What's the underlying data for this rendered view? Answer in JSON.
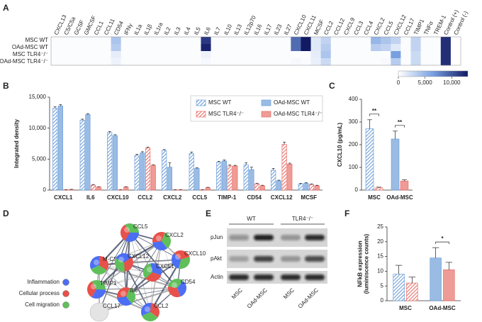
{
  "chart_data": [
    {
      "type": "heatmap",
      "panel": "A",
      "rows": [
        "MSC WT",
        "OAd-MSC WT",
        "MSC TLR4⁻/⁻",
        "OAd-MSC TLR4⁻/⁻"
      ],
      "columns": [
        "CXCL13",
        "C5/C5a",
        "GCSF",
        "GMCSF",
        "CCL1",
        "CCL11",
        "CD54",
        "IFNγ",
        "IL1a",
        "IL1β",
        "IL1ra",
        "IL2",
        "IL3",
        "IL4",
        "IL5",
        "IL6",
        "IL7",
        "IL10",
        "IL13",
        "IL12p70",
        "IL16",
        "IL17",
        "IL23",
        "IL27",
        "CXCL10",
        "CXCL11",
        "MCSF",
        "CCL2",
        "CCL12",
        "CXCL9",
        "CCL3",
        "CCL4",
        "CXCL2",
        "CCL5",
        "CXCL12",
        "CCL17",
        "TIMP1",
        "TNFα",
        "TREM-1",
        "Control (+)",
        "Control (-)"
      ],
      "values": [
        [
          200,
          200,
          200,
          200,
          200,
          200,
          4000,
          200,
          200,
          200,
          200,
          200,
          200,
          200,
          200,
          11500,
          200,
          200,
          200,
          200,
          200,
          200,
          200,
          200,
          9000,
          13000,
          1500,
          3000,
          200,
          200,
          200,
          200,
          5000,
          4000,
          3000,
          200,
          3000,
          200,
          200,
          12000,
          0
        ],
        [
          200,
          200,
          200,
          200,
          200,
          200,
          3500,
          200,
          200,
          200,
          200,
          200,
          200,
          200,
          200,
          12500,
          200,
          200,
          200,
          200,
          200,
          200,
          200,
          200,
          9000,
          13000,
          1500,
          3500,
          200,
          200,
          200,
          200,
          3500,
          3000,
          1500,
          200,
          3000,
          200,
          200,
          12000,
          0
        ],
        [
          200,
          200,
          200,
          200,
          200,
          200,
          1200,
          200,
          200,
          200,
          200,
          200,
          200,
          200,
          200,
          800,
          200,
          200,
          200,
          200,
          200,
          200,
          200,
          200,
          200,
          200,
          1200,
          4000,
          200,
          200,
          200,
          200,
          200,
          200,
          6500,
          200,
          2500,
          200,
          200,
          12000,
          0
        ],
        [
          200,
          200,
          200,
          200,
          200,
          200,
          800,
          200,
          200,
          200,
          200,
          200,
          200,
          200,
          200,
          500,
          200,
          200,
          200,
          200,
          200,
          200,
          200,
          200,
          500,
          300,
          1000,
          2500,
          200,
          200,
          200,
          200,
          200,
          400,
          3500,
          200,
          2500,
          200,
          200,
          12000,
          0
        ]
      ],
      "zlim": [
        0,
        13000
      ],
      "zticks": [
        0,
        {
          "value": 5000,
          "label": "5,000"
        },
        {
          "value": 10000,
          "label": "10,000"
        }
      ]
    },
    {
      "type": "bar",
      "panel": "B",
      "ylabel": [
        "Integrated density"
      ],
      "categories": [
        "CXCL1",
        "IL6",
        "CXCL10",
        "CCL2",
        "CXCL2",
        "CCL5",
        "TIMP-1",
        "CD54",
        "CXCL12",
        "MCSF"
      ],
      "series": [
        {
          "name": "MSC WT",
          "color": "#6f9fd8",
          "hatched": true,
          "values": [
            13200,
            11300,
            9300,
            5600,
            6400,
            5900,
            4500,
            4100,
            3200,
            1000
          ],
          "errors": [
            250,
            150,
            150,
            200,
            150,
            250,
            150,
            300,
            300,
            100
          ]
        },
        {
          "name": "OAd-MSC WT",
          "color": "#6f9fd8",
          "hatched": false,
          "values": [
            13600,
            12200,
            8800,
            6000,
            3700,
            3500,
            4700,
            3300,
            1500,
            1100
          ],
          "errors": [
            200,
            150,
            150,
            200,
            700,
            100,
            150,
            400,
            100,
            100
          ]
        },
        {
          "name": "MSC TLR4⁻/⁻",
          "color": "#e8706a",
          "hatched": true,
          "values": [
            50,
            800,
            50,
            6800,
            50,
            50,
            3900,
            1000,
            7400,
            900
          ],
          "errors": [
            20,
            100,
            20,
            150,
            20,
            20,
            150,
            100,
            350,
            100
          ]
        },
        {
          "name": "OAd-MSC TLR4⁻/⁻",
          "color": "#e8706a",
          "hatched": false,
          "values": [
            100,
            500,
            500,
            4000,
            50,
            400,
            3900,
            700,
            4200,
            700
          ],
          "errors": [
            20,
            50,
            50,
            100,
            20,
            50,
            100,
            80,
            150,
            80
          ]
        }
      ],
      "ylim": [
        0,
        15000
      ],
      "yticks": [
        0,
        {
          "value": 5000,
          "label": "5,000"
        },
        {
          "value": 10000,
          "label": "10,000"
        },
        {
          "value": 15000,
          "label": "15,000"
        }
      ],
      "legend": "top-right"
    },
    {
      "type": "bar",
      "panel": "C",
      "ylabel": [
        "CXCL10 (pg/mL)"
      ],
      "categories": [
        "MSC",
        "OAd-MSC"
      ],
      "series": [
        {
          "color": "#6f9fd8",
          "hatched": [
            true,
            false
          ],
          "values": [
            270,
            225
          ],
          "errors": [
            40,
            35
          ]
        },
        {
          "color": "#e8706a",
          "hatched": [
            true,
            false
          ],
          "values": [
            10,
            40
          ],
          "errors": [
            3,
            5
          ]
        }
      ],
      "ylim": [
        0,
        400
      ],
      "yticks": [
        0,
        100,
        200,
        300,
        400
      ],
      "annotations": [
        {
          "text": "**",
          "category": "MSC"
        },
        {
          "text": "**",
          "category": "OAd-MSC"
        }
      ]
    },
    {
      "type": "bar",
      "panel": "F",
      "ylabel": [
        "NFkB expression",
        "(luminiscence counts)"
      ],
      "categories": [
        "MSC",
        "OAd-MSC"
      ],
      "series": [
        {
          "color": "#6f9fd8",
          "hatched": [
            true,
            false
          ],
          "values": [
            9,
            14.5
          ],
          "errors": [
            3,
            3.5
          ]
        },
        {
          "color": "#e8706a",
          "hatched": [
            true,
            false
          ],
          "values": [
            6,
            10.5
          ],
          "errors": [
            2,
            2.5
          ]
        }
      ],
      "ylim": [
        0,
        25
      ],
      "yticks": [
        0,
        5,
        10,
        15,
        20,
        25
      ],
      "annotations": [
        {
          "text": "*",
          "category": "OAd-MSC"
        }
      ]
    }
  ],
  "network": {
    "panel": "D",
    "nodes": [
      {
        "label": "CCL5"
      },
      {
        "label": "CXCL2"
      },
      {
        "label": "CXCL10"
      },
      {
        "label": "M-CSF"
      },
      {
        "label": "CXCL12"
      },
      {
        "label": "CXCL1"
      },
      {
        "label": "CD54"
      },
      {
        "label": "TIMP1"
      },
      {
        "label": "IL6"
      },
      {
        "label": "CCL17"
      },
      {
        "label": "CCL2"
      }
    ],
    "legend": [
      "Inflammation",
      "Cellular process",
      "Cell migration"
    ]
  },
  "blot": {
    "panel": "E",
    "groups": [
      "WT",
      "TLR4⁻/⁻"
    ],
    "rows": [
      "pJun",
      "pAkt",
      "Actin"
    ],
    "lanes": [
      "MSC",
      "OAd-MSC",
      "MSC",
      "OAd-MSC"
    ]
  }
}
